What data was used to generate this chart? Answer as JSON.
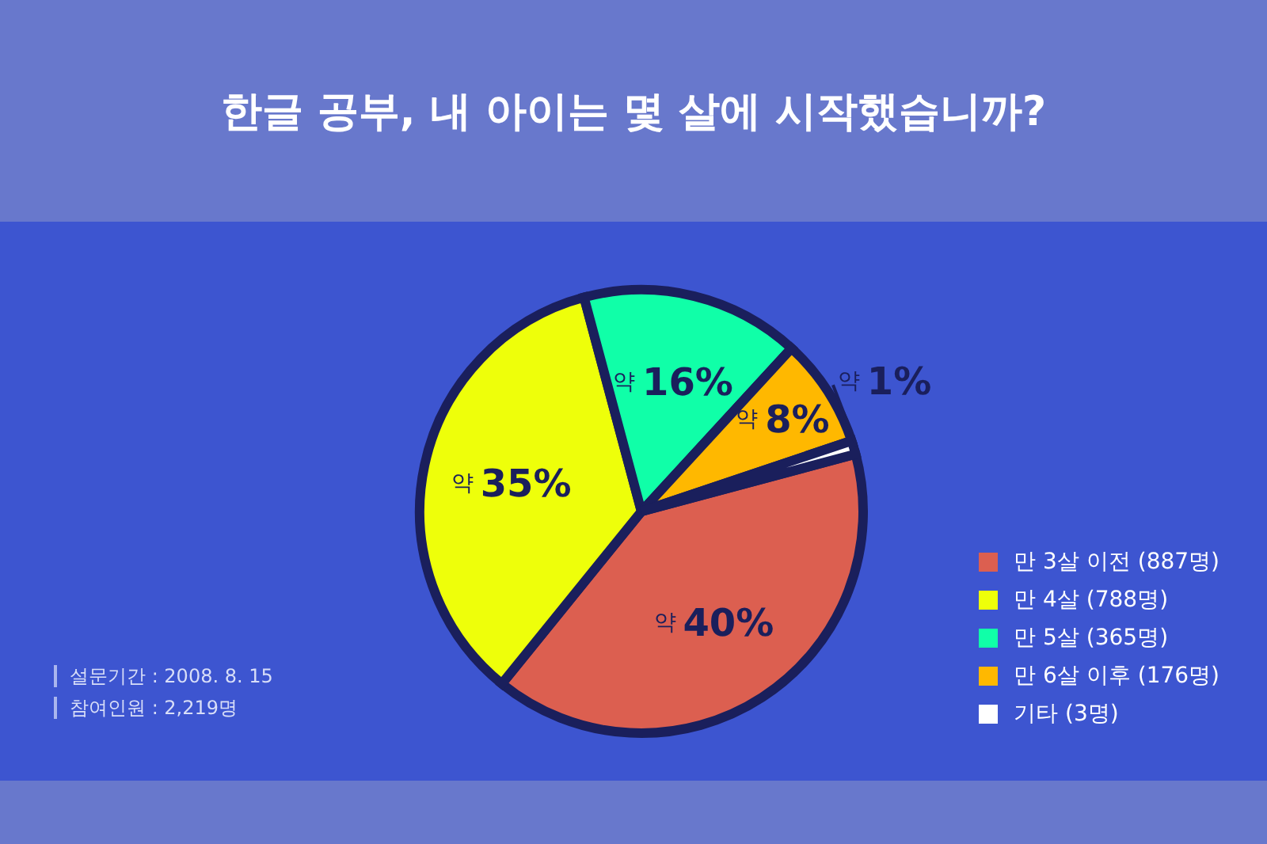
{
  "chart_data": {
    "type": "pie",
    "title": "한글 공부, 내 아이는 몇 살에 시작했습니까?",
    "categories": [
      "만 3살 이전 (887명)",
      "만 4살 (788명)",
      "만 5살 (365명)",
      "만 6살 이후 (176명)",
      "기타 (3명)"
    ],
    "values": [
      40,
      35,
      16,
      8,
      1
    ],
    "colors": [
      "#dc5f50",
      "#eeff0a",
      "#10ffa8",
      "#ffb800",
      "#ffffff"
    ],
    "value_labels": [
      "약 40%",
      "약 35%",
      "약 16%",
      "약 8%",
      "약 1%"
    ],
    "legend": "bottom right",
    "annotations": [
      "설문기간 : 2008. 8. 15",
      "참여인원 : 2,219명"
    ]
  }
}
